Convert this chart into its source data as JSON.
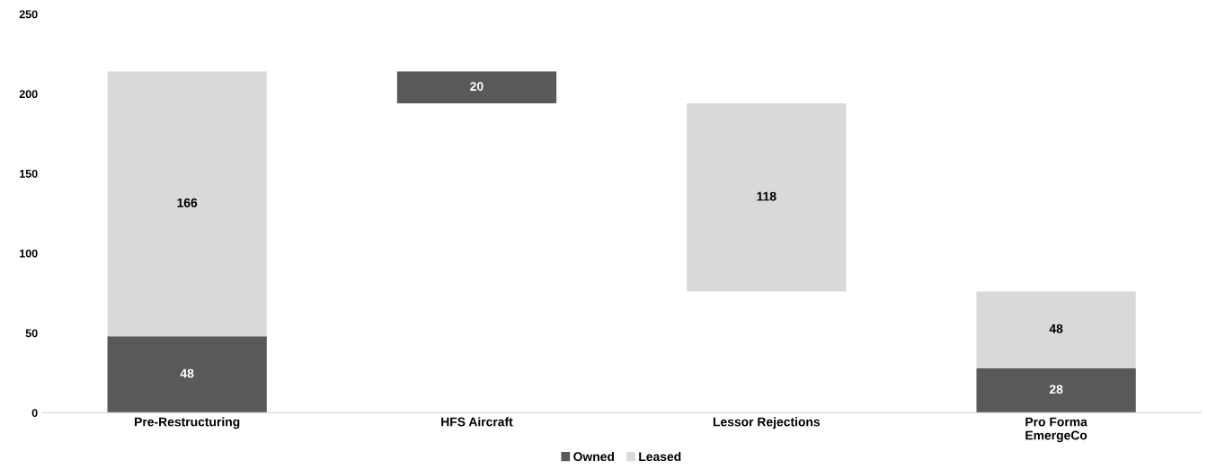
{
  "chart_data": {
    "type": "bar",
    "categories": [
      "Pre-Restructuring",
      "HFS Aircraft",
      "Lessor Rejections",
      "Pro Forma\nEmergeCo"
    ],
    "series": [
      {
        "name": "Owned",
        "color": "#595959",
        "values": [
          48,
          20,
          null,
          28
        ],
        "base": [
          0,
          194,
          null,
          0
        ]
      },
      {
        "name": "Leased",
        "color": "#d9d9d9",
        "values": [
          166,
          null,
          118,
          48
        ],
        "base": [
          48,
          null,
          76,
          28
        ]
      }
    ],
    "ylim": [
      0,
      250
    ],
    "yticks": [
      0,
      50,
      100,
      150,
      200,
      250
    ],
    "data_labels": true,
    "legend": "bottom",
    "grid": false
  }
}
